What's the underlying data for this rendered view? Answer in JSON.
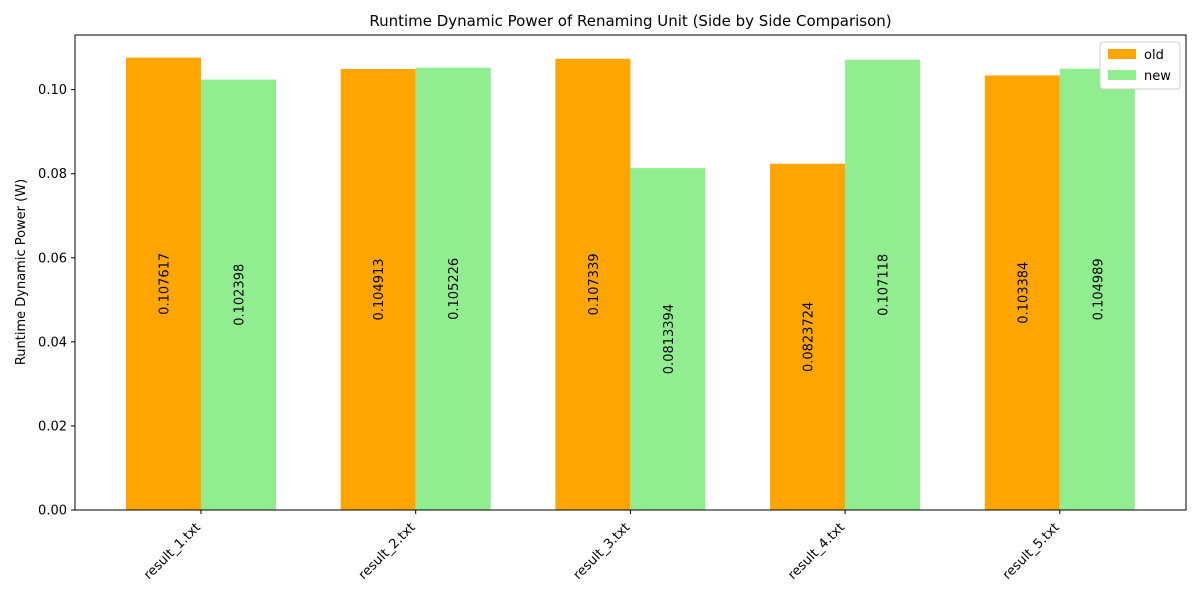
{
  "chart_data": {
    "type": "bar",
    "title": "Runtime Dynamic Power of Renaming Unit (Side by Side Comparison)",
    "xlabel": "",
    "ylabel": "Runtime Dynamic Power (W)",
    "categories": [
      "result_1.txt",
      "result_2.txt",
      "result_3.txt",
      "result_4.txt",
      "result_5.txt"
    ],
    "series": [
      {
        "name": "old",
        "color": "#ffa500",
        "values": [
          0.107617,
          0.104913,
          0.107339,
          0.0823724,
          0.103384
        ],
        "labels": [
          "0.107617",
          "0.104913",
          "0.107339",
          "0.0823724",
          "0.103384"
        ]
      },
      {
        "name": "new",
        "color": "#90ee90",
        "values": [
          0.102398,
          0.105226,
          0.0813394,
          0.107118,
          0.104989
        ],
        "labels": [
          "0.102398",
          "0.105226",
          "0.0813394",
          "0.107118",
          "0.104989"
        ]
      }
    ],
    "ylim": [
      0,
      0.113
    ],
    "yticks": [
      "0.00",
      "0.02",
      "0.04",
      "0.06",
      "0.08",
      "0.10"
    ],
    "grid": false,
    "legend_position": "top-right"
  }
}
